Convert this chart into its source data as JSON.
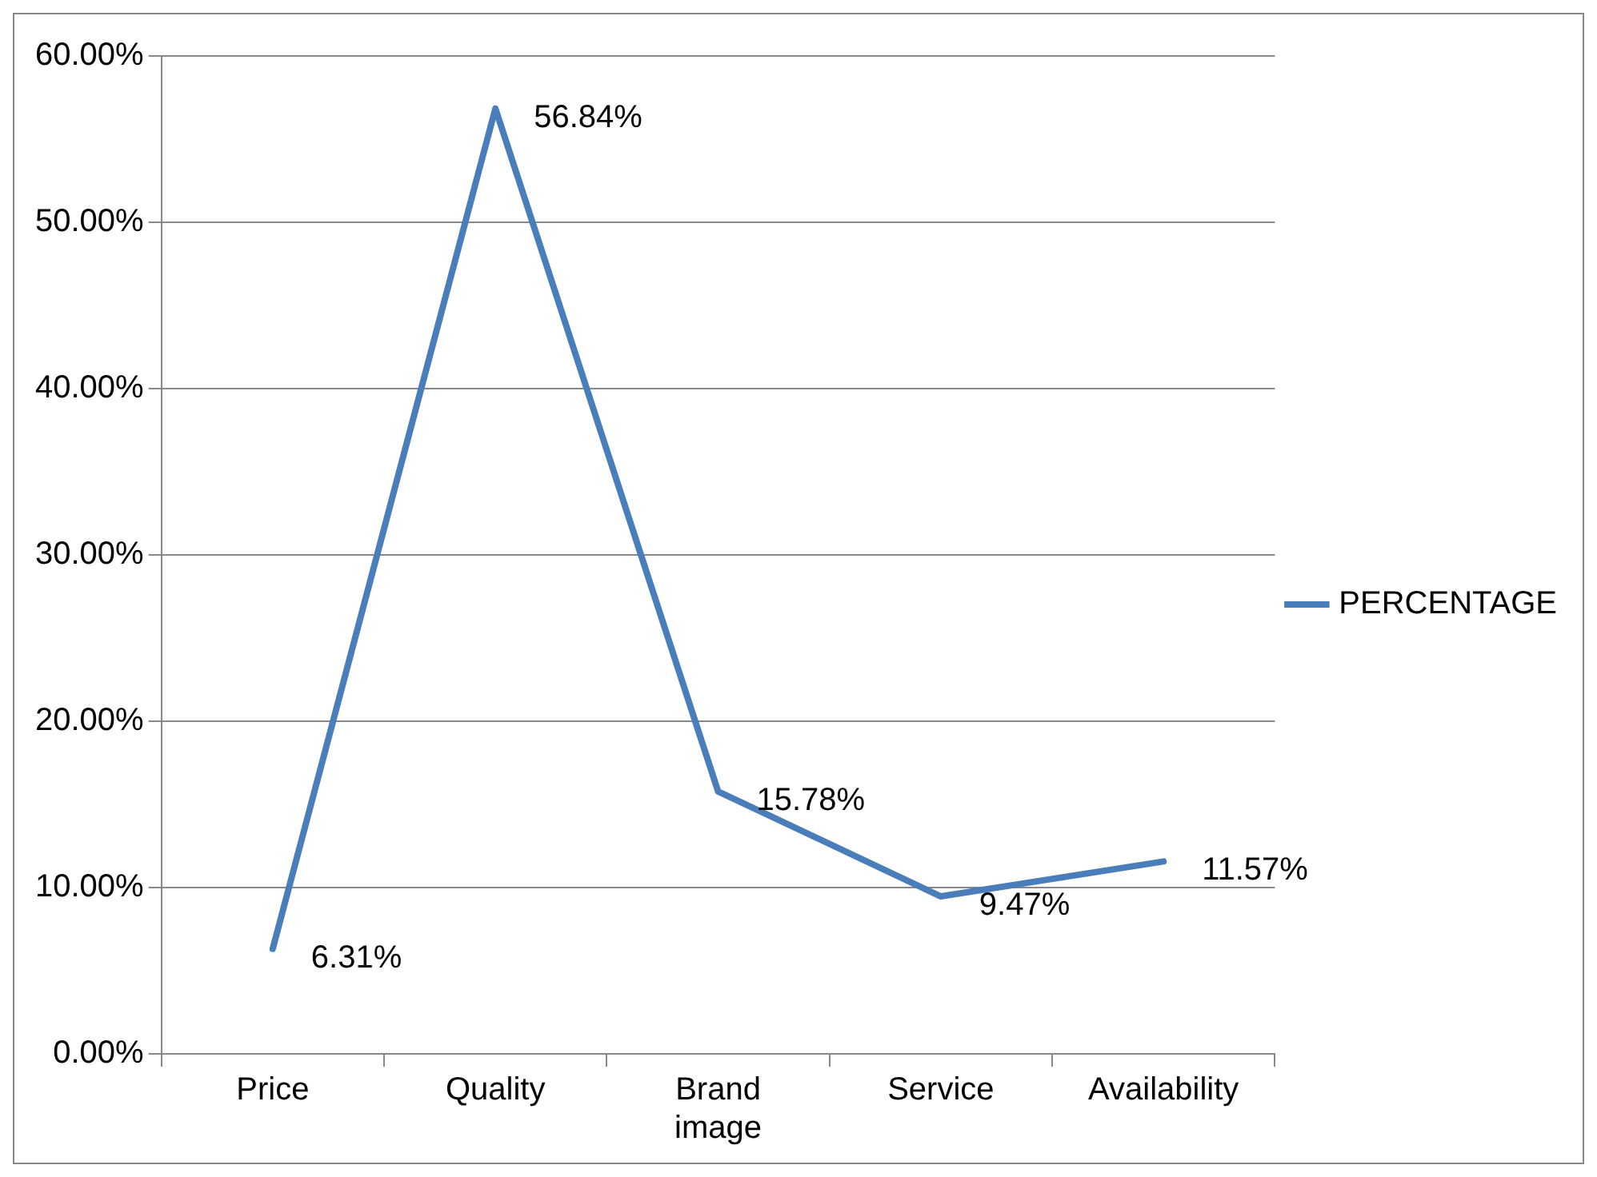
{
  "chart_data": {
    "type": "line",
    "categories": [
      "Price",
      "Quality",
      "Brand image",
      "Service",
      "Availability"
    ],
    "series": [
      {
        "name": "PERCENTAGE",
        "color": "#4a7ebb",
        "values": [
          6.31,
          56.84,
          15.78,
          9.47,
          11.57
        ],
        "value_labels": [
          "6.31%",
          "56.84%",
          "15.78%",
          "9.47%",
          "11.57%"
        ]
      }
    ],
    "ylim": [
      0,
      60
    ],
    "yticks": [
      {
        "value": 0,
        "label": "0.00%"
      },
      {
        "value": 10,
        "label": "10.00%"
      },
      {
        "value": 20,
        "label": "20.00%"
      },
      {
        "value": 30,
        "label": "30.00%"
      },
      {
        "value": 40,
        "label": "40.00%"
      },
      {
        "value": 50,
        "label": "50.00%"
      },
      {
        "value": 60,
        "label": "60.00%"
      }
    ],
    "grid": "y",
    "legend": "right",
    "marker": "none",
    "line_style": "solid"
  }
}
